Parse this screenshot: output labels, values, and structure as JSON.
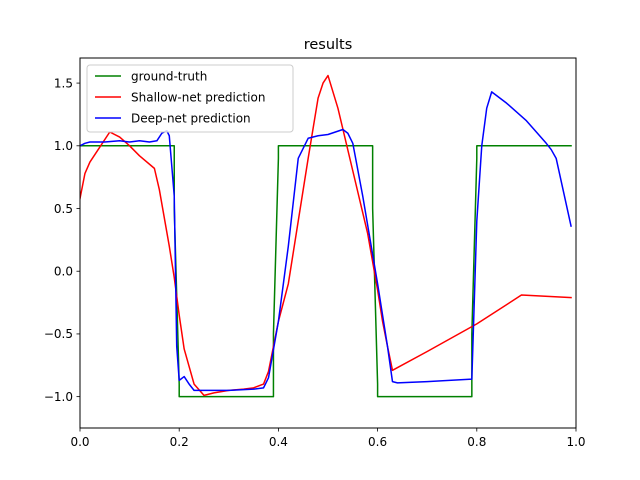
{
  "chart_data": {
    "type": "line",
    "title": "results",
    "xlabel": "",
    "ylabel": "",
    "xlim": [
      0.0,
      1.0
    ],
    "ylim": [
      -1.25,
      1.7
    ],
    "x_ticks": [
      0.0,
      0.2,
      0.4,
      0.6,
      0.8,
      1.0
    ],
    "x_tick_labels": [
      "0.0",
      "0.2",
      "0.4",
      "0.6",
      "0.8",
      "1.0"
    ],
    "y_ticks": [
      -1.0,
      -0.5,
      0.0,
      0.5,
      1.0,
      1.5
    ],
    "y_tick_labels": [
      "−1.0",
      "−0.5",
      "0.0",
      "0.5",
      "1.0",
      "1.5"
    ],
    "grid": false,
    "legend": "top-left",
    "series": [
      {
        "name": "ground-truth",
        "color": "#008000",
        "x": [
          0.0,
          0.19,
          0.19,
          0.2,
          0.2,
          0.39,
          0.39,
          0.4,
          0.4,
          0.59,
          0.59,
          0.6,
          0.6,
          0.79,
          0.79,
          0.8,
          0.8,
          0.99
        ],
        "y": [
          1.0,
          1.0,
          0.5,
          -0.9,
          -1.0,
          -1.0,
          -0.5,
          0.9,
          1.0,
          1.0,
          0.5,
          -0.9,
          -1.0,
          -1.0,
          -0.5,
          0.9,
          1.0,
          1.0
        ]
      },
      {
        "name": "Shallow-net prediction",
        "color": "#ff0000",
        "x": [
          0.0,
          0.01,
          0.02,
          0.04,
          0.06,
          0.08,
          0.1,
          0.12,
          0.15,
          0.16,
          0.18,
          0.19,
          0.2,
          0.21,
          0.23,
          0.25,
          0.27,
          0.3,
          0.33,
          0.35,
          0.37,
          0.38,
          0.39,
          0.4,
          0.42,
          0.44,
          0.46,
          0.48,
          0.49,
          0.5,
          0.52,
          0.55,
          0.58,
          0.6,
          0.61,
          0.62,
          0.63,
          0.7,
          0.8,
          0.89,
          0.99
        ],
        "y": [
          0.58,
          0.78,
          0.87,
          0.99,
          1.11,
          1.07,
          1.0,
          0.92,
          0.82,
          0.65,
          0.2,
          -0.05,
          -0.35,
          -0.62,
          -0.9,
          -0.99,
          -0.97,
          -0.95,
          -0.94,
          -0.93,
          -0.9,
          -0.8,
          -0.6,
          -0.4,
          -0.1,
          0.4,
          0.9,
          1.38,
          1.5,
          1.56,
          1.3,
          0.8,
          0.3,
          -0.15,
          -0.4,
          -0.6,
          -0.79,
          -0.64,
          -0.42,
          -0.19,
          -0.21
        ]
      },
      {
        "name": "Deep-net prediction",
        "color": "#0000ff",
        "x": [
          0.0,
          0.01,
          0.02,
          0.05,
          0.08,
          0.1,
          0.12,
          0.14,
          0.155,
          0.165,
          0.175,
          0.18,
          0.19,
          0.195,
          0.2,
          0.21,
          0.22,
          0.23,
          0.24,
          0.3,
          0.35,
          0.37,
          0.38,
          0.4,
          0.42,
          0.44,
          0.46,
          0.48,
          0.5,
          0.53,
          0.54,
          0.55,
          0.57,
          0.6,
          0.62,
          0.63,
          0.64,
          0.7,
          0.79,
          0.8,
          0.81,
          0.82,
          0.83,
          0.86,
          0.9,
          0.94,
          0.95,
          0.96,
          0.99
        ],
        "y": [
          1.0,
          1.02,
          1.03,
          1.03,
          1.04,
          1.03,
          1.04,
          1.03,
          1.04,
          1.1,
          1.12,
          1.08,
          0.6,
          -0.6,
          -0.87,
          -0.84,
          -0.9,
          -0.95,
          -0.95,
          -0.95,
          -0.94,
          -0.93,
          -0.85,
          -0.4,
          0.2,
          0.9,
          1.06,
          1.08,
          1.09,
          1.13,
          1.1,
          1.02,
          0.6,
          -0.1,
          -0.6,
          -0.88,
          -0.89,
          -0.88,
          -0.86,
          0.4,
          1.0,
          1.3,
          1.43,
          1.34,
          1.2,
          1.02,
          0.97,
          0.9,
          0.36
        ]
      }
    ]
  }
}
